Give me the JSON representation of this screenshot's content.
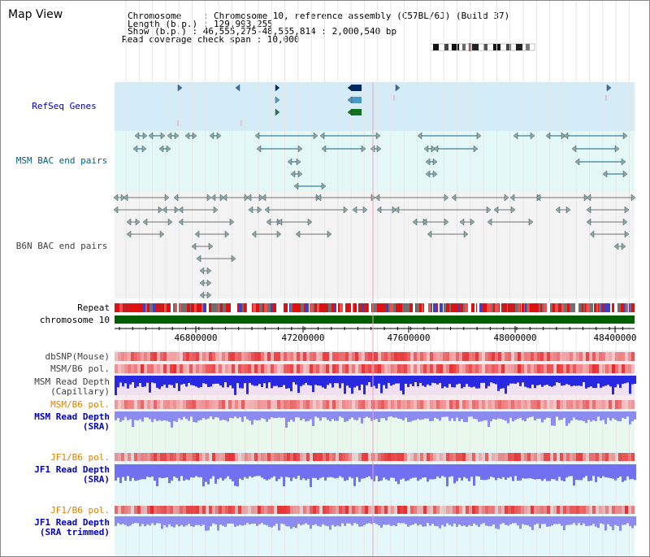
{
  "window": {
    "title": "Map View"
  },
  "info": {
    "chromosome": "Chromosome    : Chromosome 10, reference assembly (C57BL/6J) (Build 37)",
    "length": "Length (b.p.) : 129,993,255",
    "show": "Show (b.p.) : 46,555,275-48,555,814 : 2,000,540 bp",
    "span": "Read coverage check span : 10,000"
  },
  "tracks": {
    "refseq": "RefSeq Genes",
    "msm_bac": "MSM BAC end pairs",
    "b6n_bac": "B6N BAC end pairs",
    "repeat": "Repeat",
    "chromosome": "chromosome 10",
    "dbsnp": "dbSNP(Mouse)",
    "msm_b6_pol_1": "MSM/B6 pol.",
    "msm_depth_cap_1": "MSM Read Depth",
    "msm_depth_cap_2": "(Capillary)",
    "msm_b6_pol_2": "MSM/B6 pol.",
    "msm_depth_sra_1": "MSM Read Depth",
    "msm_depth_sra_2": "(SRA)",
    "jf1_b6_pol_1": "JF1/B6 pol.",
    "jf1_depth_sra_1": "JF1 Read Depth",
    "jf1_depth_sra_2": "(SRA)",
    "jf1_b6_pol_2": "JF1/B6 pol.",
    "jf1_depth_trim_1": "JF1 Read Depth",
    "jf1_depth_trim_2": "(SRA trimmed)"
  },
  "axis": {
    "ticks": [
      "46800000",
      "47200000",
      "47600000",
      "48000000",
      "48400000"
    ]
  },
  "colors": {
    "refseq_bg": "#d4ecf8",
    "msm_bac_bg": "#e4f8f8",
    "grey_bg": "#f3f3f3",
    "pink_bg": "#f8ecf0",
    "green_bg": "#e8f8ec",
    "cyan_bg": "#e4f8fa",
    "label_blue": "#0000c0",
    "label_teal": "#006080",
    "label_orange": "#e08000",
    "label_dark": "#404040",
    "depth_dark": "#2828e0",
    "depth_light": "#7070f0",
    "depth_lavender": "#8c8cf0",
    "chrom_green": "#006000"
  }
}
